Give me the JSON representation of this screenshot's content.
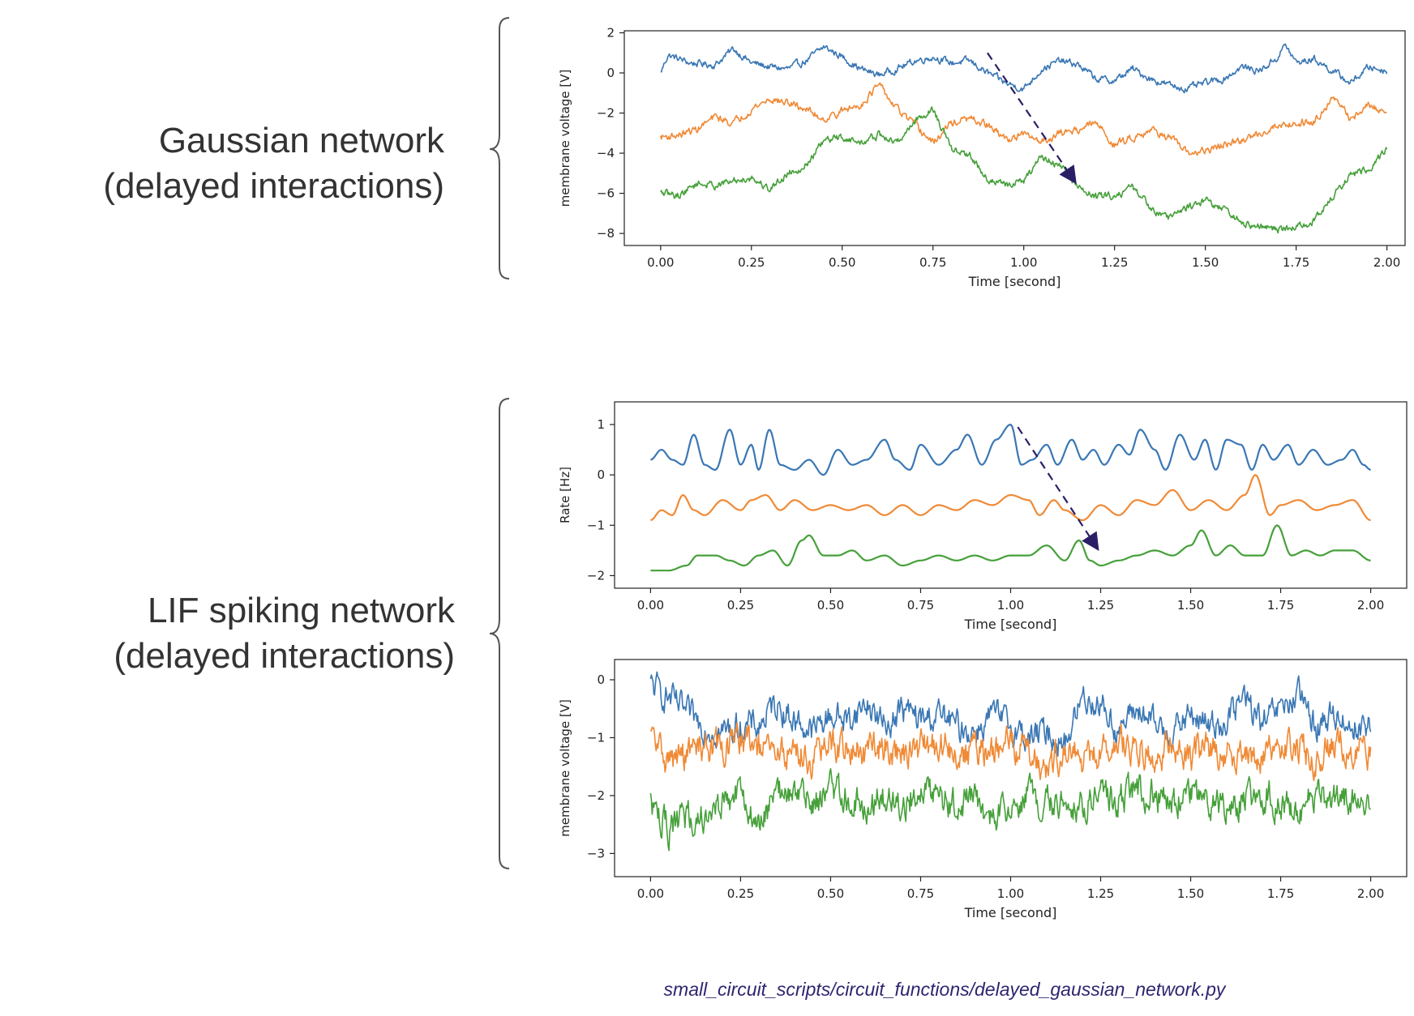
{
  "labels": {
    "gaussian_line1": "Gaussian network",
    "gaussian_line2": "(delayed interactions)",
    "lif_line1": "LIF spiking network",
    "lif_line2": "(delayed interactions)"
  },
  "footer": "small_circuit_scripts/circuit_functions/delayed_gaussian_network.py",
  "colors": {
    "blue": "#3a77b4",
    "orange": "#f08a36",
    "green": "#46a03a",
    "arrow": "#2a1f66",
    "brace": "#555555"
  },
  "chart_data": [
    {
      "id": "gaussian",
      "type": "line",
      "title": "",
      "xlabel": "Time [second]",
      "ylabel": "membrane voltage [V]",
      "xlim": [
        -0.1,
        2.05
      ],
      "ylim": [
        -8.6,
        2.1
      ],
      "xticks": [
        0,
        0.25,
        0.5,
        0.75,
        1.0,
        1.25,
        1.5,
        1.75,
        2.0
      ],
      "xtick_labels": [
        "0.00",
        "0.25",
        "0.50",
        "0.75",
        "1.00",
        "1.25",
        "1.50",
        "1.75",
        "2.00"
      ],
      "yticks": [
        2,
        0,
        -2,
        -4,
        -6,
        -8
      ],
      "ytick_labels": [
        "2",
        "0",
        "−2",
        "−4",
        "−6",
        "−8"
      ],
      "grid": false,
      "series": [
        {
          "color": "blue",
          "noise": 0.28,
          "x": [
            0,
            0.02,
            0.08,
            0.15,
            0.2,
            0.25,
            0.3,
            0.35,
            0.4,
            0.45,
            0.5,
            0.55,
            0.6,
            0.65,
            0.7,
            0.75,
            0.8,
            0.85,
            0.9,
            0.95,
            1.0,
            1.05,
            1.1,
            1.15,
            1.2,
            1.25,
            1.3,
            1.35,
            1.4,
            1.45,
            1.5,
            1.55,
            1.6,
            1.65,
            1.7,
            1.72,
            1.75,
            1.8,
            1.85,
            1.9,
            1.95,
            2.0
          ],
          "y": [
            0,
            0.9,
            0.5,
            0.4,
            1.2,
            0.5,
            0.3,
            0.2,
            0.6,
            1.3,
            0.8,
            0.2,
            -0.1,
            0.2,
            0.6,
            0.8,
            0.5,
            0.6,
            0.0,
            -0.5,
            -0.8,
            0.2,
            0.6,
            0.4,
            -0.3,
            -0.4,
            0.2,
            -0.3,
            -0.6,
            -0.8,
            -0.5,
            -0.3,
            0.3,
            0.1,
            0.8,
            1.4,
            0.5,
            0.7,
            0.1,
            -0.5,
            0.3,
            0.1
          ]
        },
        {
          "color": "orange",
          "noise": 0.3,
          "x": [
            0,
            0.05,
            0.1,
            0.15,
            0.2,
            0.25,
            0.3,
            0.35,
            0.4,
            0.45,
            0.5,
            0.55,
            0.6,
            0.65,
            0.7,
            0.75,
            0.8,
            0.85,
            0.9,
            0.95,
            1.0,
            1.05,
            1.1,
            1.15,
            1.2,
            1.25,
            1.3,
            1.35,
            1.4,
            1.45,
            1.5,
            1.55,
            1.6,
            1.65,
            1.7,
            1.75,
            1.8,
            1.85,
            1.9,
            1.95,
            2.0
          ],
          "y": [
            -3.2,
            -3.1,
            -2.8,
            -2.2,
            -2.5,
            -1.8,
            -1.3,
            -1.5,
            -1.8,
            -2.3,
            -1.9,
            -1.6,
            -0.6,
            -1.8,
            -2.6,
            -3.5,
            -2.5,
            -2.3,
            -2.6,
            -3.3,
            -3.1,
            -3.4,
            -3.0,
            -2.8,
            -2.5,
            -3.6,
            -3.2,
            -2.8,
            -3.2,
            -4.0,
            -3.9,
            -3.6,
            -3.4,
            -3.0,
            -2.6,
            -2.5,
            -2.4,
            -1.2,
            -2.3,
            -1.6,
            -2.0
          ]
        },
        {
          "color": "green",
          "noise": 0.3,
          "x": [
            0,
            0.05,
            0.1,
            0.15,
            0.2,
            0.25,
            0.3,
            0.35,
            0.4,
            0.45,
            0.5,
            0.55,
            0.6,
            0.65,
            0.7,
            0.75,
            0.8,
            0.85,
            0.9,
            0.95,
            1.0,
            1.05,
            1.1,
            1.15,
            1.2,
            1.25,
            1.3,
            1.35,
            1.4,
            1.45,
            1.5,
            1.55,
            1.6,
            1.65,
            1.7,
            1.75,
            1.8,
            1.85,
            1.9,
            1.95,
            2.0
          ],
          "y": [
            -6.0,
            -6.1,
            -5.5,
            -5.6,
            -5.4,
            -5.2,
            -5.8,
            -5.0,
            -4.6,
            -3.4,
            -3.2,
            -3.5,
            -3.1,
            -3.5,
            -2.4,
            -1.8,
            -3.8,
            -4.1,
            -5.3,
            -5.6,
            -5.4,
            -4.2,
            -4.6,
            -5.7,
            -6.2,
            -6.1,
            -5.7,
            -6.7,
            -7.2,
            -6.7,
            -6.3,
            -6.8,
            -7.5,
            -7.7,
            -7.8,
            -7.7,
            -7.4,
            -6.2,
            -5.1,
            -4.8,
            -3.7
          ]
        }
      ],
      "arrow": {
        "from": [
          0.9,
          1.0
        ],
        "to": [
          1.14,
          -5.4
        ]
      }
    },
    {
      "id": "lif-rate",
      "type": "line",
      "title": "",
      "xlabel": "Time [second]",
      "ylabel": "Rate [Hz]",
      "xlim": [
        -0.1,
        2.1
      ],
      "ylim": [
        -2.25,
        1.45
      ],
      "xticks": [
        0,
        0.25,
        0.5,
        0.75,
        1.0,
        1.25,
        1.5,
        1.75,
        2.0
      ],
      "xtick_labels": [
        "0.00",
        "0.25",
        "0.50",
        "0.75",
        "1.00",
        "1.25",
        "1.50",
        "1.75",
        "2.00"
      ],
      "yticks": [
        1,
        0,
        -1,
        -2
      ],
      "ytick_labels": [
        "1",
        "0",
        "−1",
        "−2"
      ],
      "grid": false,
      "series": [
        {
          "color": "blue",
          "noise": 0,
          "x": [
            0,
            0.03,
            0.06,
            0.09,
            0.12,
            0.15,
            0.18,
            0.22,
            0.25,
            0.28,
            0.3,
            0.33,
            0.36,
            0.4,
            0.44,
            0.48,
            0.52,
            0.56,
            0.6,
            0.65,
            0.68,
            0.72,
            0.75,
            0.8,
            0.85,
            0.88,
            0.92,
            0.96,
            1.0,
            1.03,
            1.06,
            1.1,
            1.13,
            1.17,
            1.2,
            1.23,
            1.26,
            1.3,
            1.33,
            1.36,
            1.4,
            1.43,
            1.47,
            1.51,
            1.54,
            1.57,
            1.6,
            1.64,
            1.67,
            1.7,
            1.73,
            1.77,
            1.8,
            1.84,
            1.88,
            1.92,
            1.95,
            1.98,
            2.0
          ],
          "y": [
            0.3,
            0.5,
            0.3,
            0.2,
            0.8,
            0.2,
            0.1,
            0.9,
            0.2,
            0.6,
            0.1,
            0.9,
            0.2,
            0.1,
            0.3,
            0.0,
            0.5,
            0.2,
            0.3,
            0.7,
            0.3,
            0.1,
            0.6,
            0.2,
            0.5,
            0.8,
            0.2,
            0.7,
            1.0,
            0.2,
            0.3,
            0.6,
            0.2,
            0.7,
            0.3,
            0.5,
            0.2,
            0.6,
            0.4,
            0.9,
            0.5,
            0.1,
            0.8,
            0.3,
            0.7,
            0.1,
            0.7,
            0.6,
            0.1,
            0.6,
            0.3,
            0.6,
            0.2,
            0.5,
            0.2,
            0.3,
            0.5,
            0.2,
            0.1
          ]
        },
        {
          "color": "orange",
          "noise": 0,
          "x": [
            0,
            0.03,
            0.06,
            0.09,
            0.12,
            0.15,
            0.2,
            0.25,
            0.28,
            0.32,
            0.36,
            0.4,
            0.45,
            0.5,
            0.55,
            0.6,
            0.65,
            0.7,
            0.75,
            0.8,
            0.85,
            0.9,
            0.95,
            1.0,
            1.05,
            1.08,
            1.12,
            1.15,
            1.2,
            1.25,
            1.3,
            1.35,
            1.4,
            1.45,
            1.5,
            1.55,
            1.6,
            1.65,
            1.68,
            1.72,
            1.75,
            1.8,
            1.85,
            1.9,
            1.95,
            2.0
          ],
          "y": [
            -0.9,
            -0.7,
            -0.8,
            -0.4,
            -0.7,
            -0.8,
            -0.5,
            -0.7,
            -0.5,
            -0.4,
            -0.7,
            -0.5,
            -0.7,
            -0.6,
            -0.7,
            -0.6,
            -0.8,
            -0.6,
            -0.8,
            -0.6,
            -0.7,
            -0.5,
            -0.6,
            -0.4,
            -0.5,
            -0.8,
            -0.5,
            -0.7,
            -0.9,
            -0.6,
            -0.8,
            -0.5,
            -0.6,
            -0.3,
            -0.7,
            -0.5,
            -0.7,
            -0.4,
            -0.0,
            -0.8,
            -0.6,
            -0.5,
            -0.7,
            -0.6,
            -0.5,
            -0.9
          ]
        },
        {
          "color": "green",
          "noise": 0,
          "x": [
            0,
            0.05,
            0.1,
            0.13,
            0.18,
            0.22,
            0.26,
            0.3,
            0.34,
            0.38,
            0.42,
            0.44,
            0.48,
            0.52,
            0.56,
            0.6,
            0.65,
            0.7,
            0.75,
            0.8,
            0.85,
            0.9,
            0.95,
            1.0,
            1.05,
            1.1,
            1.15,
            1.19,
            1.22,
            1.25,
            1.3,
            1.35,
            1.4,
            1.45,
            1.5,
            1.53,
            1.57,
            1.61,
            1.65,
            1.7,
            1.74,
            1.78,
            1.82,
            1.86,
            1.9,
            1.95,
            2.0
          ],
          "y": [
            -1.9,
            -1.9,
            -1.8,
            -1.6,
            -1.6,
            -1.7,
            -1.8,
            -1.6,
            -1.5,
            -1.8,
            -1.3,
            -1.2,
            -1.6,
            -1.6,
            -1.5,
            -1.7,
            -1.6,
            -1.8,
            -1.7,
            -1.6,
            -1.7,
            -1.6,
            -1.7,
            -1.6,
            -1.6,
            -1.4,
            -1.7,
            -1.3,
            -1.7,
            -1.8,
            -1.7,
            -1.6,
            -1.5,
            -1.6,
            -1.4,
            -1.1,
            -1.6,
            -1.4,
            -1.6,
            -1.6,
            -1.0,
            -1.6,
            -1.5,
            -1.6,
            -1.5,
            -1.5,
            -1.7
          ]
        }
      ],
      "arrow": {
        "from": [
          1.02,
          0.95
        ],
        "to": [
          1.24,
          -1.45
        ]
      }
    },
    {
      "id": "lif-voltage",
      "type": "line",
      "title": "",
      "xlabel": "Time [second]",
      "ylabel": "membrane voltage [V]",
      "xlim": [
        -0.1,
        2.1
      ],
      "ylim": [
        -3.4,
        0.35
      ],
      "xticks": [
        0,
        0.25,
        0.5,
        0.75,
        1.0,
        1.25,
        1.5,
        1.75,
        2.0
      ],
      "xtick_labels": [
        "0.00",
        "0.25",
        "0.50",
        "0.75",
        "1.00",
        "1.25",
        "1.50",
        "1.75",
        "2.00"
      ],
      "yticks": [
        0,
        -1,
        -2,
        -3
      ],
      "ytick_labels": [
        "0",
        "−1",
        "−2",
        "−3"
      ],
      "grid": false,
      "series": [
        {
          "color": "blue",
          "noise": 0.4,
          "x": [
            0,
            0.05,
            0.1,
            0.15,
            0.2,
            0.25,
            0.3,
            0.35,
            0.4,
            0.45,
            0.5,
            0.55,
            0.6,
            0.65,
            0.7,
            0.75,
            0.8,
            0.85,
            0.9,
            0.95,
            1.0,
            1.05,
            1.1,
            1.15,
            1.2,
            1.25,
            1.3,
            1.35,
            1.4,
            1.45,
            1.5,
            1.55,
            1.6,
            1.65,
            1.7,
            1.75,
            1.8,
            1.85,
            1.9,
            1.95,
            2.0
          ],
          "y": [
            -0.1,
            -0.3,
            -0.6,
            -0.8,
            -0.9,
            -0.8,
            -0.8,
            -0.4,
            -0.7,
            -0.9,
            -0.6,
            -0.7,
            -0.4,
            -0.8,
            -0.5,
            -0.7,
            -0.6,
            -0.8,
            -0.9,
            -0.6,
            -0.8,
            -1.0,
            -0.9,
            -1.1,
            -0.3,
            -0.4,
            -0.9,
            -0.5,
            -0.8,
            -0.9,
            -0.6,
            -0.8,
            -0.7,
            -0.3,
            -0.8,
            -0.5,
            -0.3,
            -0.8,
            -0.6,
            -0.8,
            -0.8
          ]
        },
        {
          "color": "orange",
          "noise": 0.45,
          "x": [
            0,
            0.05,
            0.1,
            0.15,
            0.2,
            0.25,
            0.3,
            0.35,
            0.4,
            0.45,
            0.5,
            0.55,
            0.6,
            0.65,
            0.7,
            0.75,
            0.8,
            0.85,
            0.9,
            0.95,
            1.0,
            1.05,
            1.1,
            1.15,
            1.2,
            1.25,
            1.3,
            1.35,
            1.4,
            1.45,
            1.5,
            1.55,
            1.6,
            1.65,
            1.7,
            1.75,
            1.8,
            1.85,
            1.9,
            1.95,
            2.0
          ],
          "y": [
            -1.0,
            -1.4,
            -1.3,
            -1.1,
            -1.2,
            -1.0,
            -1.2,
            -1.3,
            -1.2,
            -1.4,
            -1.1,
            -1.2,
            -1.3,
            -1.1,
            -1.3,
            -1.2,
            -1.1,
            -1.3,
            -1.2,
            -1.3,
            -1.1,
            -1.2,
            -1.5,
            -1.2,
            -1.4,
            -1.3,
            -1.1,
            -1.2,
            -1.3,
            -1.1,
            -1.3,
            -1.2,
            -1.3,
            -1.2,
            -1.4,
            -1.1,
            -1.2,
            -1.4,
            -1.1,
            -1.2,
            -1.3
          ]
        },
        {
          "color": "green",
          "noise": 0.45,
          "x": [
            0,
            0.05,
            0.1,
            0.15,
            0.2,
            0.25,
            0.3,
            0.35,
            0.4,
            0.45,
            0.5,
            0.55,
            0.6,
            0.65,
            0.7,
            0.75,
            0.8,
            0.85,
            0.9,
            0.95,
            1.0,
            1.05,
            1.1,
            1.15,
            1.2,
            1.25,
            1.3,
            1.35,
            1.4,
            1.45,
            1.5,
            1.55,
            1.6,
            1.65,
            1.7,
            1.75,
            1.8,
            1.85,
            1.9,
            1.95,
            2.0
          ],
          "y": [
            -2.1,
            -2.6,
            -2.4,
            -2.3,
            -2.1,
            -2.0,
            -2.6,
            -1.9,
            -2.0,
            -2.1,
            -1.9,
            -2.0,
            -2.2,
            -2.0,
            -2.1,
            -1.9,
            -2.0,
            -2.2,
            -2.0,
            -2.4,
            -2.1,
            -2.0,
            -2.2,
            -2.0,
            -2.2,
            -2.0,
            -2.1,
            -1.9,
            -2.0,
            -2.1,
            -1.9,
            -2.0,
            -2.2,
            -2.1,
            -2.0,
            -2.1,
            -2.2,
            -2.0,
            -2.1,
            -2.0,
            -2.1
          ]
        }
      ],
      "arrow": null
    }
  ]
}
